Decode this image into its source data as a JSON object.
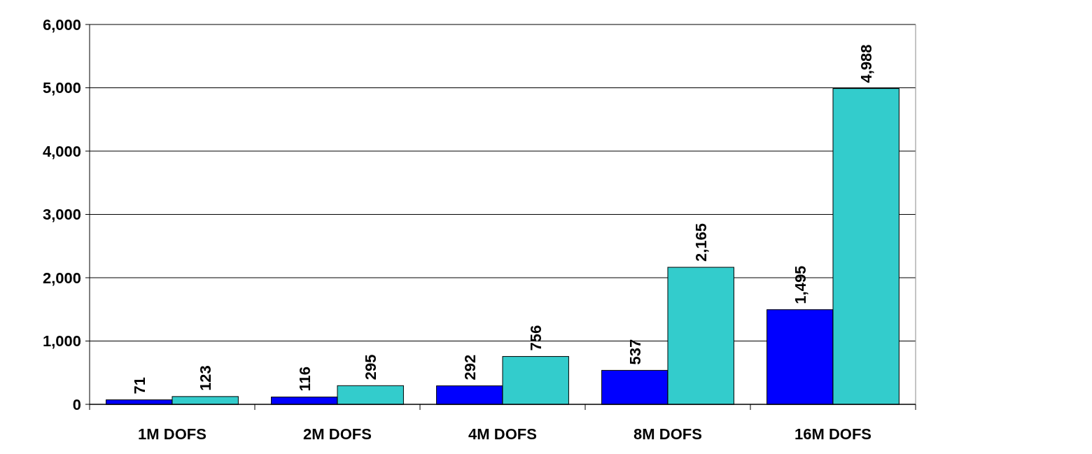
{
  "chart_data": {
    "type": "bar",
    "categories": [
      "1M DOFS",
      "2M DOFS",
      "4M DOFS",
      "8M DOFS",
      "16M DOFS"
    ],
    "series": [
      {
        "color": "#0000ff",
        "values": [
          71,
          116,
          292,
          537,
          1495
        ],
        "value_labels": [
          "71",
          "116",
          "292",
          "537",
          "1,495"
        ]
      },
      {
        "color": "#33cccc",
        "values": [
          123,
          295,
          756,
          2165,
          4988
        ],
        "value_labels": [
          "123",
          "295",
          "756",
          "2,165",
          "4,988"
        ]
      }
    ],
    "ylim": [
      0,
      6000
    ],
    "yticks": [
      0,
      {
        "value": 1000,
        "label": "1,000"
      },
      {
        "value": 2000,
        "label": "2,000"
      },
      {
        "value": 3000,
        "label": "3,000"
      },
      {
        "value": 4000,
        "label": "4,000"
      },
      {
        "value": 5000,
        "label": "5,000"
      },
      {
        "value": 6000,
        "label": "6,000"
      }
    ],
    "grid": "y"
  }
}
